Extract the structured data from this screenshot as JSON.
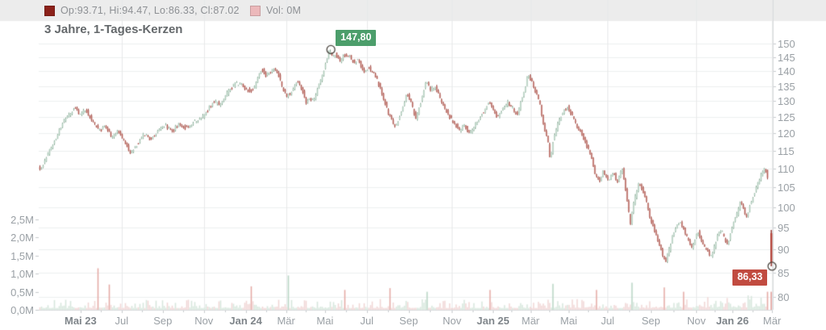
{
  "legend": {
    "series": [
      {
        "name": "ohlc",
        "swatch": "#8b211a",
        "label": "Op:93.71, Hi:94.47, Lo:86.33, Cl:87.02"
      },
      {
        "name": "volume",
        "swatch": "#ecb9bb",
        "label": "Vol: 0M"
      }
    ]
  },
  "title": "3 Jahre, 1-Tages-Kerzen",
  "chart_data": {
    "type": "candlestick",
    "title": "3 Jahre, 1-Tages-Kerzen",
    "timeframe": "3 Jahre, 1-Tages-Kerzen",
    "last_ohlc": {
      "open": 93.71,
      "high": 94.47,
      "low": 86.33,
      "close": 87.02,
      "volume_label": "0M"
    },
    "price_axis": {
      "side": "right",
      "scale": "log",
      "min": 80,
      "max": 150,
      "ticks": [
        150,
        145,
        140,
        135,
        130,
        125,
        120,
        115,
        110,
        105,
        100,
        95,
        90,
        85,
        80
      ]
    },
    "volume_axis": {
      "side": "left",
      "ticks": [
        {
          "v": 2.5,
          "label": "2,5M"
        },
        {
          "v": 2.0,
          "label": "2,0M"
        },
        {
          "v": 1.5,
          "label": "1,5M"
        },
        {
          "v": 1.0,
          "label": "1,0M"
        },
        {
          "v": 0.5,
          "label": "0,5M"
        },
        {
          "v": 0.0,
          "label": "0,0M"
        }
      ]
    },
    "x_axis": {
      "ticks": [
        {
          "label": "Mai 23",
          "f": 0.057,
          "bold": true
        },
        {
          "label": "Jul",
          "f": 0.113,
          "bold": false
        },
        {
          "label": "Sep",
          "f": 0.169,
          "bold": false
        },
        {
          "label": "Nov",
          "f": 0.225,
          "bold": false
        },
        {
          "label": "Jan 24",
          "f": 0.282,
          "bold": true
        },
        {
          "label": "Mär",
          "f": 0.337,
          "bold": false
        },
        {
          "label": "Mai",
          "f": 0.39,
          "bold": false
        },
        {
          "label": "Jul",
          "f": 0.447,
          "bold": false
        },
        {
          "label": "Sep",
          "f": 0.504,
          "bold": false
        },
        {
          "label": "Nov",
          "f": 0.563,
          "bold": false
        },
        {
          "label": "Jan 25",
          "f": 0.619,
          "bold": true
        },
        {
          "label": "Mär",
          "f": 0.67,
          "bold": false
        },
        {
          "label": "Mai",
          "f": 0.722,
          "bold": false
        },
        {
          "label": "Jul",
          "f": 0.775,
          "bold": false
        },
        {
          "label": "Sep",
          "f": 0.834,
          "bold": false
        },
        {
          "label": "Nov",
          "f": 0.896,
          "bold": false
        },
        {
          "label": "Jan 26",
          "f": 0.945,
          "bold": true
        },
        {
          "label": "Mär",
          "f": 0.999,
          "bold": false
        }
      ]
    },
    "annotations": [
      {
        "label": "147,80",
        "price": 147.8,
        "f": 0.398,
        "kind": "period-high"
      },
      {
        "label": "86,33",
        "price": 86.33,
        "f": 0.999,
        "kind": "last-price"
      }
    ],
    "price_path": [
      [
        0.0,
        111.5
      ],
      [
        0.005,
        109.6
      ],
      [
        0.013,
        113.5
      ],
      [
        0.024,
        118.0
      ],
      [
        0.035,
        123.5
      ],
      [
        0.046,
        126.5
      ],
      [
        0.052,
        128.2
      ],
      [
        0.058,
        125.3
      ],
      [
        0.066,
        127.5
      ],
      [
        0.076,
        123.5
      ],
      [
        0.086,
        120.8
      ],
      [
        0.093,
        122.3
      ],
      [
        0.102,
        118.8
      ],
      [
        0.111,
        120.6
      ],
      [
        0.12,
        117.3
      ],
      [
        0.127,
        114.2
      ],
      [
        0.136,
        116.8
      ],
      [
        0.145,
        119.8
      ],
      [
        0.155,
        118.2
      ],
      [
        0.165,
        121.2
      ],
      [
        0.175,
        122.6
      ],
      [
        0.184,
        120.4
      ],
      [
        0.193,
        123.0
      ],
      [
        0.203,
        121.5
      ],
      [
        0.214,
        123.6
      ],
      [
        0.224,
        124.6
      ],
      [
        0.233,
        127.2
      ],
      [
        0.241,
        130.0
      ],
      [
        0.248,
        128.8
      ],
      [
        0.258,
        132.4
      ],
      [
        0.269,
        135.6
      ],
      [
        0.277,
        135.9
      ],
      [
        0.284,
        134.2
      ],
      [
        0.29,
        133.2
      ],
      [
        0.297,
        134.6
      ],
      [
        0.301,
        138.0
      ],
      [
        0.306,
        141.3
      ],
      [
        0.311,
        138.6
      ],
      [
        0.316,
        139.7
      ],
      [
        0.322,
        140.6
      ],
      [
        0.329,
        138.6
      ],
      [
        0.334,
        134.3
      ],
      [
        0.34,
        131.6
      ],
      [
        0.345,
        132.8
      ],
      [
        0.352,
        135.8
      ],
      [
        0.356,
        136.6
      ],
      [
        0.362,
        132.9
      ],
      [
        0.367,
        129.3
      ],
      [
        0.371,
        130.8
      ],
      [
        0.377,
        130.4
      ],
      [
        0.382,
        134.0
      ],
      [
        0.389,
        138.5
      ],
      [
        0.393,
        143.0
      ],
      [
        0.398,
        147.8
      ],
      [
        0.402,
        144.8
      ],
      [
        0.407,
        146.4
      ],
      [
        0.412,
        143.4
      ],
      [
        0.418,
        145.6
      ],
      [
        0.424,
        145.9
      ],
      [
        0.431,
        143.2
      ],
      [
        0.437,
        144.6
      ],
      [
        0.445,
        139.8
      ],
      [
        0.453,
        141.2
      ],
      [
        0.462,
        137.6
      ],
      [
        0.464,
        136.5
      ],
      [
        0.471,
        131.5
      ],
      [
        0.478,
        126.5
      ],
      [
        0.485,
        123.0
      ],
      [
        0.488,
        121.8
      ],
      [
        0.497,
        127.5
      ],
      [
        0.504,
        132.2
      ],
      [
        0.511,
        128.5
      ],
      [
        0.516,
        124.3
      ],
      [
        0.523,
        130.0
      ],
      [
        0.53,
        136.8
      ],
      [
        0.536,
        133.5
      ],
      [
        0.542,
        134.8
      ],
      [
        0.548,
        131.5
      ],
      [
        0.555,
        128.0
      ],
      [
        0.56,
        125.6
      ],
      [
        0.568,
        123.4
      ],
      [
        0.576,
        120.6
      ],
      [
        0.582,
        122.8
      ],
      [
        0.589,
        119.9
      ],
      [
        0.596,
        122.3
      ],
      [
        0.602,
        124.5
      ],
      [
        0.609,
        127.0
      ],
      [
        0.615,
        129.8
      ],
      [
        0.622,
        127.5
      ],
      [
        0.627,
        124.6
      ],
      [
        0.634,
        127.4
      ],
      [
        0.641,
        129.8
      ],
      [
        0.647,
        127.9
      ],
      [
        0.654,
        125.4
      ],
      [
        0.659,
        130.0
      ],
      [
        0.665,
        135.0
      ],
      [
        0.669,
        138.8
      ],
      [
        0.674,
        136.5
      ],
      [
        0.679,
        133.0
      ],
      [
        0.685,
        129.5
      ],
      [
        0.69,
        122.0
      ],
      [
        0.696,
        117.5
      ],
      [
        0.699,
        112.5
      ],
      [
        0.703,
        118.0
      ],
      [
        0.709,
        122.5
      ],
      [
        0.715,
        126.0
      ],
      [
        0.722,
        128.2
      ],
      [
        0.729,
        125.5
      ],
      [
        0.735,
        122.5
      ],
      [
        0.742,
        119.8
      ],
      [
        0.748,
        116.8
      ],
      [
        0.755,
        113.0
      ],
      [
        0.76,
        108.5
      ],
      [
        0.766,
        106.5
      ],
      [
        0.771,
        109.5
      ],
      [
        0.778,
        107.0
      ],
      [
        0.785,
        109.0
      ],
      [
        0.791,
        106.0
      ],
      [
        0.797,
        110.5
      ],
      [
        0.802,
        104.0
      ],
      [
        0.808,
        96.0
      ],
      [
        0.811,
        99.5
      ],
      [
        0.816,
        103.5
      ],
      [
        0.82,
        106.5
      ],
      [
        0.823,
        105.0
      ],
      [
        0.83,
        101.5
      ],
      [
        0.835,
        97.5
      ],
      [
        0.841,
        94.5
      ],
      [
        0.846,
        91.5
      ],
      [
        0.852,
        89.0
      ],
      [
        0.856,
        87.3
      ],
      [
        0.862,
        90.5
      ],
      [
        0.866,
        93.5
      ],
      [
        0.871,
        95.5
      ],
      [
        0.876,
        96.8
      ],
      [
        0.881,
        94.5
      ],
      [
        0.887,
        92.0
      ],
      [
        0.892,
        90.2
      ],
      [
        0.897,
        92.8
      ],
      [
        0.901,
        94.0
      ],
      [
        0.905,
        92.0
      ],
      [
        0.91,
        90.5
      ],
      [
        0.914,
        89.5
      ],
      [
        0.919,
        88.2
      ],
      [
        0.923,
        91.0
      ],
      [
        0.928,
        93.5
      ],
      [
        0.932,
        94.8
      ],
      [
        0.936,
        92.5
      ],
      [
        0.941,
        91.2
      ],
      [
        0.945,
        94.0
      ],
      [
        0.949,
        96.5
      ],
      [
        0.954,
        98.5
      ],
      [
        0.958,
        101.0
      ],
      [
        0.963,
        99.0
      ],
      [
        0.967,
        97.2
      ],
      [
        0.971,
        100.5
      ],
      [
        0.976,
        103.0
      ],
      [
        0.98,
        105.5
      ],
      [
        0.985,
        107.5
      ],
      [
        0.989,
        109.5
      ],
      [
        0.992,
        110.4
      ],
      [
        0.996,
        106.0
      ]
    ],
    "volume_spikes": [
      [
        0.081,
        1.15
      ],
      [
        0.096,
        0.7
      ],
      [
        0.289,
        0.65
      ],
      [
        0.341,
        0.95
      ],
      [
        0.417,
        0.55
      ],
      [
        0.478,
        0.6
      ],
      [
        0.53,
        0.5
      ],
      [
        0.615,
        0.55
      ],
      [
        0.7,
        0.72
      ],
      [
        0.76,
        0.55
      ],
      [
        0.808,
        0.75
      ],
      [
        0.852,
        0.62
      ],
      [
        0.878,
        0.5
      ],
      [
        0.996,
        0.55
      ],
      [
        0.999,
        0.5
      ]
    ],
    "colors": {
      "up_body": "#aecbbb",
      "up_line": "#7fa38c",
      "down_body": "#b25b52",
      "down_line": "#9c453e",
      "vol_up": "#d8e7dd",
      "vol_down": "#f1d7d6",
      "vol_up_spike": "#b9d6c5",
      "vol_down_spike": "#e5aba7",
      "grid": "#edeff0",
      "grid_v": "#e7e9ea",
      "axis_line": "#d7dadc",
      "tick": "#c6cacd",
      "legend_bar": "#ececec",
      "badge_high_bg": "#4c9e6b",
      "badge_low_bg": "#c14b40",
      "badge_text": "#ffffff",
      "marker_stroke": "#4a453f"
    }
  }
}
